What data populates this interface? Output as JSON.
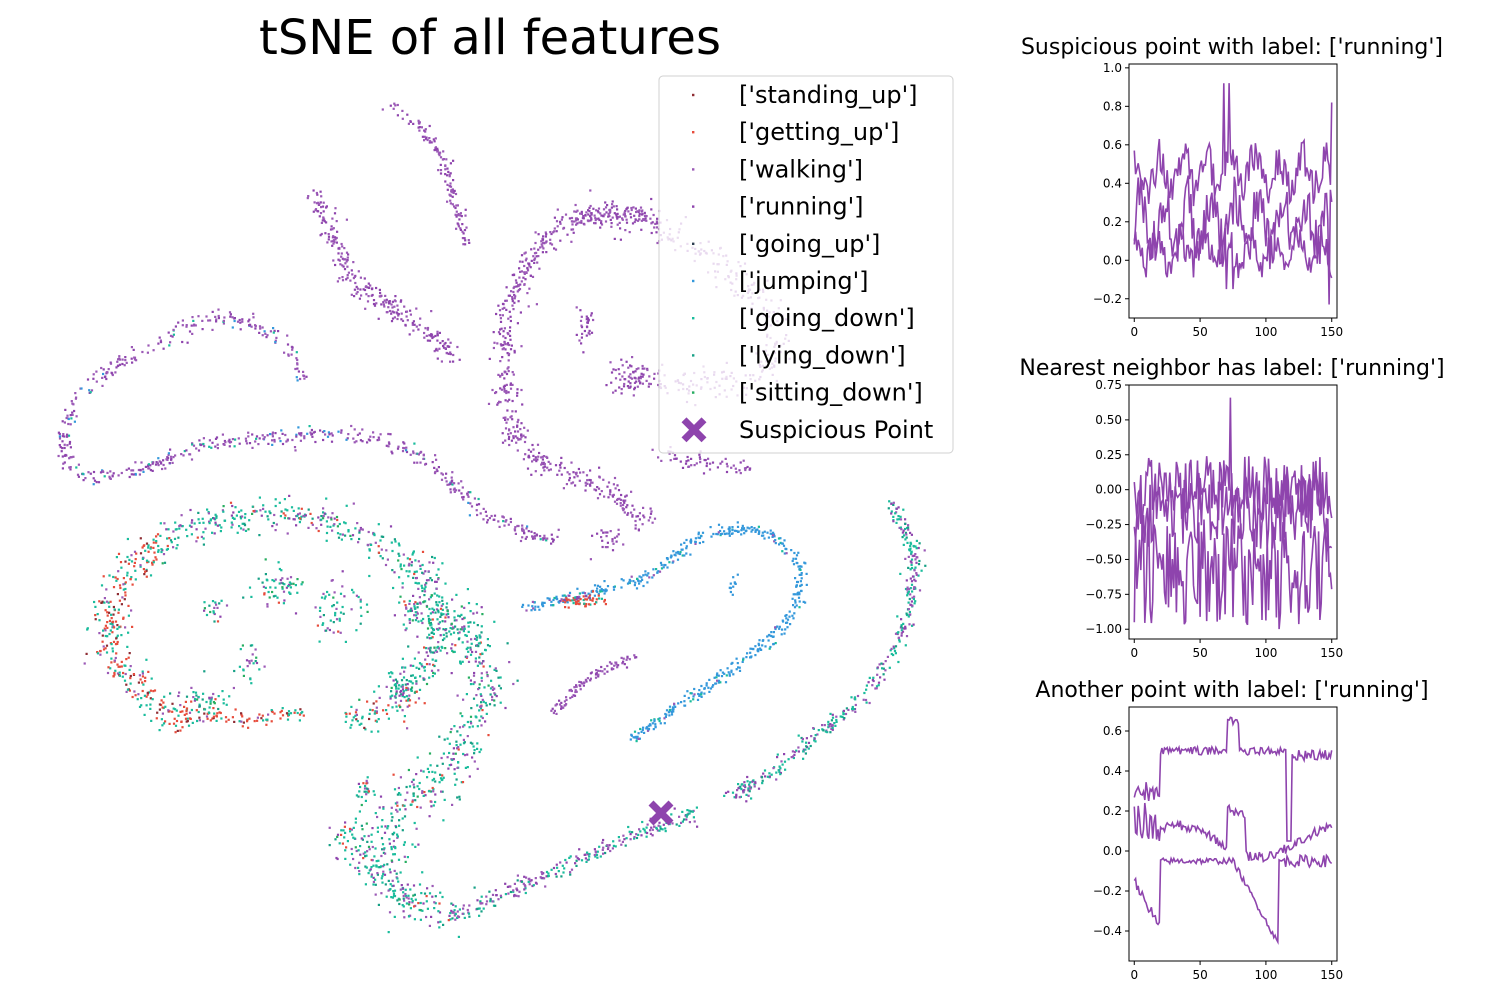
{
  "chart_data": [
    {
      "type": "scatter",
      "title": "tSNE of all features",
      "axes_visible": false,
      "series": [
        {
          "name": "['standing_up']",
          "color": "#8e2c33"
        },
        {
          "name": "['getting_up']",
          "color": "#e74c3c"
        },
        {
          "name": "['walking']",
          "color": "#9b59b6"
        },
        {
          "name": "['running']",
          "color": "#8e44ad"
        },
        {
          "name": "['going_up']",
          "color": "#2c3e50"
        },
        {
          "name": "['jumping']",
          "color": "#3498db"
        },
        {
          "name": "['going_down']",
          "color": "#1abc9c"
        },
        {
          "name": "['lying_down']",
          "color": "#16a085"
        },
        {
          "name": "['sitting_down']",
          "color": "#27ae60"
        }
      ],
      "highlight": {
        "name": "Suspicious Point",
        "color": "#8e44ad",
        "marker": "X"
      },
      "legend": {
        "position": "upper-right"
      }
    },
    {
      "type": "line",
      "title": "Suspicious point with label: ['running']",
      "x": [
        0,
        150
      ],
      "xticks": [
        "0",
        "50",
        "100",
        "150"
      ],
      "yticks": [
        "1.0",
        "0.8",
        "0.6",
        "0.4",
        "0.2",
        "0.0",
        "−0.2"
      ],
      "ylim": [
        -0.3,
        1.02
      ],
      "color": "#8e44ad",
      "series_count": 3
    },
    {
      "type": "line",
      "title": "Nearest neighbor has label: ['running']",
      "x": [
        0,
        150
      ],
      "xticks": [
        "0",
        "50",
        "100",
        "150"
      ],
      "yticks": [
        "0.75",
        "0.50",
        "0.25",
        "0.00",
        "−0.25",
        "−0.50",
        "−0.75",
        "−1.00"
      ],
      "ylim": [
        -1.07,
        0.75
      ],
      "color": "#8e44ad",
      "series_count": 3
    },
    {
      "type": "line",
      "title": "Another point with label: ['running']",
      "x": [
        0,
        150
      ],
      "xticks": [
        "0",
        "50",
        "100",
        "150"
      ],
      "yticks": [
        "0.6",
        "0.4",
        "0.2",
        "0.0",
        "−0.2",
        "−0.4"
      ],
      "ylim": [
        -0.55,
        0.72
      ],
      "color": "#8e44ad",
      "series_count": 3
    }
  ]
}
